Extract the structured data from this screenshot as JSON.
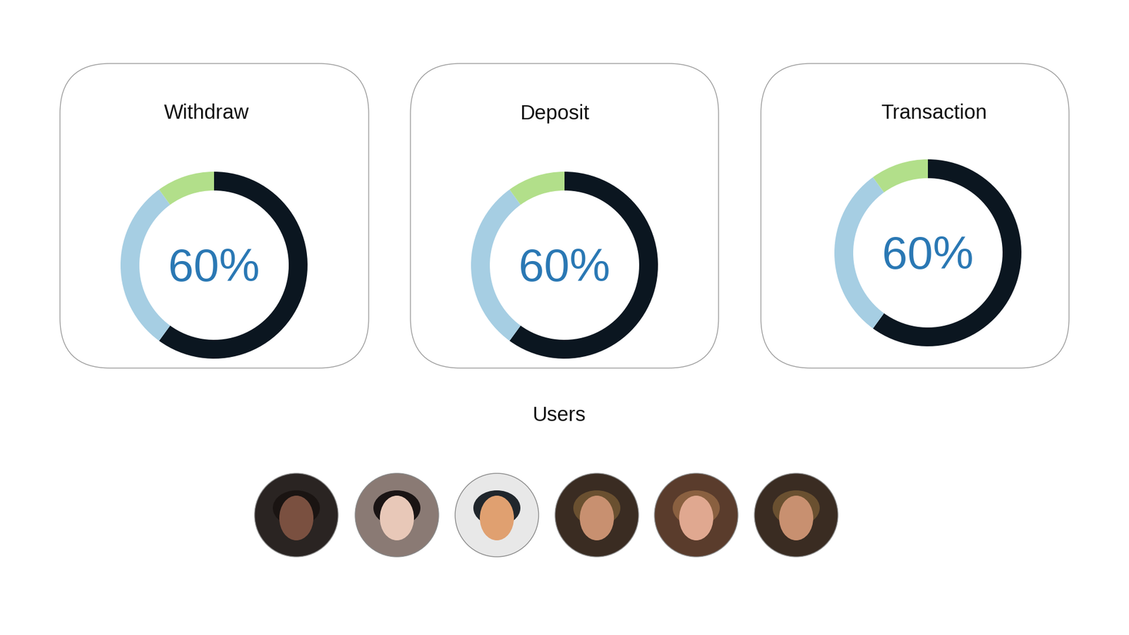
{
  "chart_data": [
    {
      "type": "donut",
      "title": "Withdraw",
      "values": [
        60,
        30,
        10
      ],
      "colors": [
        "#0b1620",
        "#a6cee3",
        "#b2df8a"
      ],
      "center_label": "60%"
    },
    {
      "type": "donut",
      "title": "Deposit",
      "values": [
        60,
        30,
        10
      ],
      "colors": [
        "#0b1620",
        "#a6cee3",
        "#b2df8a"
      ],
      "center_label": "60%"
    },
    {
      "type": "donut",
      "title": "Transaction",
      "values": [
        60,
        30,
        10
      ],
      "colors": [
        "#0b1620",
        "#a6cee3",
        "#b2df8a"
      ],
      "center_label": "60%"
    }
  ],
  "users": {
    "title": "Users"
  }
}
